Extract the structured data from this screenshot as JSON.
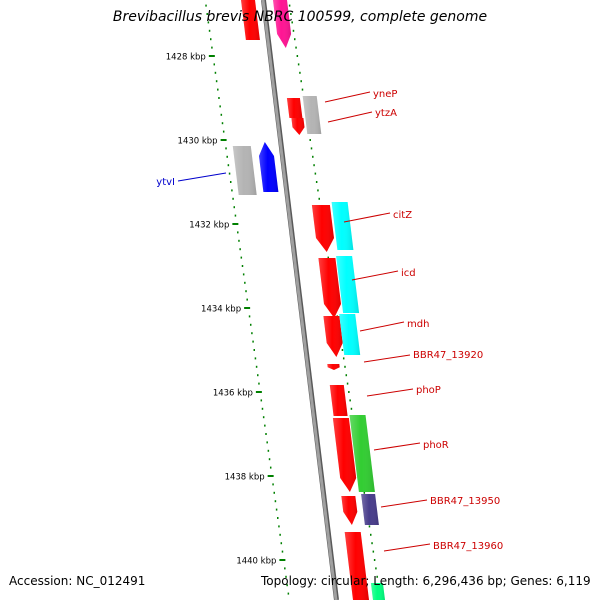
{
  "title": "Brevibacillus brevis NBRC 100599, complete genome",
  "footer": {
    "accession": "Accession: NC_012491",
    "topology": "Topology: circular; Length: 6,296,436 bp; Genes: 6,119"
  },
  "colors": {
    "backbone": "#8c8c8c",
    "tick": "#008000",
    "red": "#ff0000",
    "pink": "#ff1493",
    "gray": "#b4b4b4",
    "blue": "#0000ff",
    "cyan": "#00ffff",
    "green": "#32cd32",
    "navy": "#483d8b",
    "spring": "#00ff7f",
    "red_label": "#cc0000",
    "blue_label": "#0000cc"
  },
  "scale": [
    {
      "label": "1428 kbp",
      "kbp": 1428
    },
    {
      "label": "1430 kbp",
      "kbp": 1430
    },
    {
      "label": "1432 kbp",
      "kbp": 1432
    },
    {
      "label": "1434 kbp",
      "kbp": 1434
    },
    {
      "label": "1436 kbp",
      "kbp": 1436
    },
    {
      "label": "1438 kbp",
      "kbp": 1438
    },
    {
      "label": "1440 kbp",
      "kbp": 1440
    }
  ],
  "labels": [
    {
      "text": "yneP",
      "strand": "right",
      "color": "red_label"
    },
    {
      "text": "ytzA",
      "strand": "right",
      "color": "red_label"
    },
    {
      "text": "ytvI",
      "strand": "left",
      "color": "blue_label"
    },
    {
      "text": "citZ",
      "strand": "right",
      "color": "red_label"
    },
    {
      "text": "icd",
      "strand": "right",
      "color": "red_label"
    },
    {
      "text": "mdh",
      "strand": "right",
      "color": "red_label"
    },
    {
      "text": "BBR47_13920",
      "strand": "right",
      "color": "red_label"
    },
    {
      "text": "phoP",
      "strand": "right",
      "color": "red_label"
    },
    {
      "text": "phoR",
      "strand": "right",
      "color": "red_label"
    },
    {
      "text": "BBR47_13950",
      "strand": "right",
      "color": "red_label"
    },
    {
      "text": "BBR47_13960",
      "strand": "right",
      "color": "red_label"
    }
  ]
}
